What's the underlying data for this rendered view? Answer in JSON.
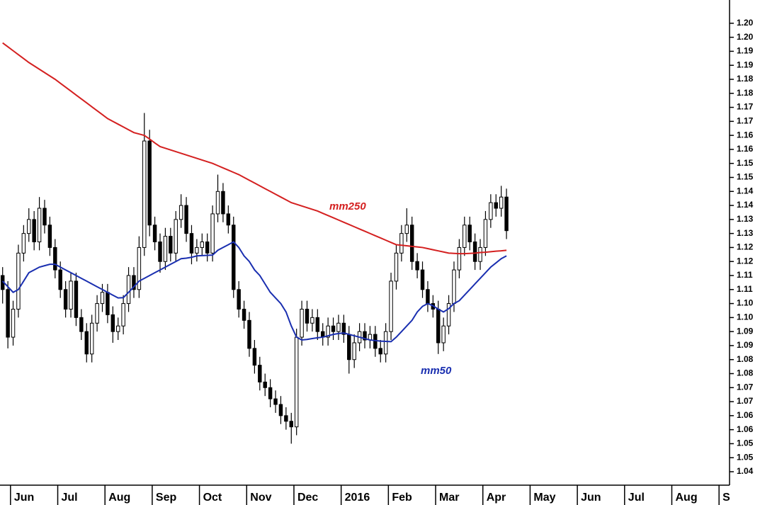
{
  "chart_data": {
    "type": "candlestick",
    "up_color": "#ffffff",
    "down_color": "#000000",
    "wick_color": "#000000",
    "categories": [
      null,
      null,
      "Jun",
      null,
      null,
      null,
      null,
      null,
      null,
      null,
      null,
      "Jul",
      null,
      null,
      null,
      null,
      null,
      null,
      null,
      null,
      "Aug",
      null,
      null,
      null,
      null,
      null,
      null,
      null,
      null,
      "Sep",
      null,
      null,
      null,
      null,
      null,
      null,
      null,
      null,
      "Oct",
      null,
      null,
      null,
      null,
      null,
      null,
      null,
      null,
      "Nov",
      null,
      null,
      null,
      null,
      null,
      null,
      null,
      null,
      "Dec",
      null,
      null,
      null,
      null,
      null,
      null,
      null,
      null,
      "2016",
      null,
      null,
      null,
      null,
      null,
      null,
      null,
      null,
      "Feb",
      null,
      null,
      null,
      null,
      null,
      null,
      null,
      null,
      "Mar",
      null,
      null,
      null,
      null,
      null,
      null,
      null,
      null,
      "Apr",
      null,
      null,
      null,
      null,
      null,
      null,
      null,
      null,
      "May",
      null,
      null,
      null,
      null,
      null,
      null,
      null,
      null,
      "Jun",
      null,
      null,
      null,
      null,
      null,
      null,
      null,
      null,
      "Jul",
      null,
      null,
      null,
      null,
      null,
      null,
      null,
      null,
      "Aug",
      null,
      null,
      null,
      null,
      null,
      null,
      null,
      null,
      "S",
      null
    ],
    "open": [
      1.11,
      1.105,
      1.088,
      1.098,
      1.118,
      1.125,
      1.13,
      1.122,
      1.134,
      1.128,
      1.12,
      1.112,
      1.105,
      1.098,
      1.108,
      1.095,
      1.09,
      1.082,
      1.093,
      1.1,
      1.104,
      1.096,
      1.09,
      1.092,
      1.1,
      1.11,
      1.105,
      1.12,
      1.158,
      1.128,
      1.122,
      1.115,
      1.124,
      1.118,
      1.13,
      1.135,
      1.125,
      1.118,
      1.12,
      1.122,
      1.118,
      1.132,
      1.14,
      1.132,
      1.128,
      1.105,
      1.098,
      1.094,
      1.084,
      1.078,
      1.072,
      1.07,
      1.066,
      1.064,
      1.06,
      1.058,
      1.056,
      1.088,
      1.098,
      1.093,
      1.095,
      1.09,
      1.088,
      1.092,
      1.09,
      1.093,
      1.089,
      1.08,
      1.086,
      1.09,
      1.087,
      1.089,
      1.084,
      1.082,
      1.09,
      1.108,
      1.118,
      1.125,
      1.128,
      1.115,
      1.112,
      1.105,
      1.1,
      1.098,
      1.086,
      1.092,
      1.1,
      1.112,
      1.12,
      1.128,
      1.122,
      1.115,
      1.12,
      1.13,
      1.136,
      1.134,
      1.138,
      null,
      null,
      null,
      null,
      null,
      null,
      null,
      null,
      null,
      null,
      null,
      null,
      null,
      null,
      null,
      null,
      null,
      null,
      null,
      null,
      null,
      null,
      null,
      null,
      null,
      null,
      null,
      null,
      null,
      null,
      null,
      null,
      null,
      null,
      null,
      null,
      null,
      null,
      null,
      null,
      null,
      null
    ],
    "high": [
      1.113,
      1.108,
      1.101,
      1.121,
      1.128,
      1.134,
      1.133,
      1.138,
      1.137,
      1.131,
      1.123,
      1.115,
      1.108,
      1.111,
      1.111,
      1.098,
      1.093,
      1.096,
      1.103,
      1.107,
      1.107,
      1.099,
      1.095,
      1.103,
      1.113,
      1.113,
      1.124,
      1.168,
      1.162,
      1.131,
      1.125,
      1.127,
      1.127,
      1.133,
      1.139,
      1.138,
      1.128,
      1.123,
      1.125,
      1.125,
      1.135,
      1.146,
      1.143,
      1.135,
      1.131,
      1.108,
      1.101,
      1.097,
      1.087,
      1.081,
      1.075,
      1.073,
      1.069,
      1.067,
      1.063,
      1.061,
      1.091,
      1.101,
      1.101,
      1.098,
      1.098,
      1.093,
      1.095,
      1.095,
      1.096,
      1.096,
      1.092,
      1.089,
      1.093,
      1.093,
      1.092,
      1.092,
      1.087,
      1.093,
      1.111,
      1.121,
      1.128,
      1.134,
      1.131,
      1.118,
      1.115,
      1.108,
      1.103,
      1.101,
      1.095,
      1.103,
      1.115,
      1.123,
      1.131,
      1.131,
      1.125,
      1.123,
      1.133,
      1.139,
      1.139,
      1.142,
      1.141,
      null,
      null,
      null,
      null,
      null,
      null,
      null,
      null,
      null,
      null,
      null,
      null,
      null,
      null,
      null,
      null,
      null,
      null,
      null,
      null,
      null,
      null,
      null,
      null,
      null,
      null,
      null,
      null,
      null,
      null,
      null,
      null,
      null,
      null,
      null,
      null,
      null,
      null,
      null,
      null,
      null,
      null
    ],
    "low": [
      1.1,
      1.084,
      1.085,
      1.095,
      1.115,
      1.122,
      1.119,
      1.119,
      1.125,
      1.117,
      1.109,
      1.102,
      1.095,
      1.095,
      1.092,
      1.087,
      1.079,
      1.079,
      1.09,
      1.097,
      1.093,
      1.086,
      1.087,
      1.089,
      1.097,
      1.102,
      1.102,
      1.117,
      1.124,
      1.119,
      1.111,
      1.112,
      1.115,
      1.115,
      1.127,
      1.122,
      1.114,
      1.115,
      1.117,
      1.115,
      1.115,
      1.129,
      1.129,
      1.125,
      1.102,
      1.095,
      1.091,
      1.081,
      1.075,
      1.069,
      1.067,
      1.063,
      1.061,
      1.057,
      1.055,
      1.05,
      1.053,
      1.085,
      1.09,
      1.09,
      1.087,
      1.085,
      1.085,
      1.087,
      1.087,
      1.086,
      1.075,
      1.077,
      1.083,
      1.084,
      1.084,
      1.081,
      1.079,
      1.079,
      1.087,
      1.105,
      1.115,
      1.122,
      1.112,
      1.109,
      1.102,
      1.097,
      1.095,
      1.082,
      1.083,
      1.089,
      1.097,
      1.109,
      1.117,
      1.119,
      1.112,
      1.112,
      1.117,
      1.127,
      1.131,
      1.131,
      1.123,
      null,
      null,
      null,
      null,
      null,
      null,
      null,
      null,
      null,
      null,
      null,
      null,
      null,
      null,
      null,
      null,
      null,
      null,
      null,
      null,
      null,
      null,
      null,
      null,
      null,
      null,
      null,
      null,
      null,
      null,
      null,
      null,
      null,
      null,
      null,
      null,
      null,
      null,
      null,
      null,
      null,
      null
    ],
    "close": [
      1.105,
      1.088,
      1.098,
      1.118,
      1.125,
      1.13,
      1.122,
      1.134,
      1.128,
      1.12,
      1.112,
      1.105,
      1.098,
      1.108,
      1.095,
      1.09,
      1.082,
      1.093,
      1.1,
      1.104,
      1.096,
      1.09,
      1.092,
      1.1,
      1.11,
      1.105,
      1.12,
      1.158,
      1.128,
      1.122,
      1.115,
      1.124,
      1.118,
      1.13,
      1.135,
      1.125,
      1.118,
      1.12,
      1.122,
      1.118,
      1.132,
      1.14,
      1.132,
      1.128,
      1.105,
      1.098,
      1.094,
      1.084,
      1.078,
      1.072,
      1.07,
      1.066,
      1.064,
      1.06,
      1.058,
      1.056,
      1.088,
      1.098,
      1.093,
      1.095,
      1.09,
      1.088,
      1.092,
      1.09,
      1.093,
      1.089,
      1.08,
      1.086,
      1.09,
      1.087,
      1.089,
      1.084,
      1.082,
      1.09,
      1.108,
      1.118,
      1.125,
      1.128,
      1.115,
      1.112,
      1.105,
      1.1,
      1.098,
      1.086,
      1.092,
      1.1,
      1.112,
      1.12,
      1.128,
      1.122,
      1.115,
      1.12,
      1.13,
      1.136,
      1.134,
      1.138,
      1.126,
      null,
      null,
      null,
      null,
      null,
      null,
      null,
      null,
      null,
      null,
      null,
      null,
      null,
      null,
      null,
      null,
      null,
      null,
      null,
      null,
      null,
      null,
      null,
      null,
      null,
      null,
      null,
      null,
      null,
      null,
      null,
      null,
      null,
      null,
      null,
      null,
      null,
      null,
      null,
      null,
      null,
      null
    ],
    "lines": [
      {
        "name": "mm250",
        "color": "#d42020",
        "values": [
          1.193,
          1.1916,
          1.1902,
          1.1888,
          1.1874,
          1.186,
          1.1848,
          1.1836,
          1.1824,
          1.1812,
          1.18,
          1.1786,
          1.1772,
          1.1758,
          1.1744,
          1.173,
          1.1716,
          1.1702,
          1.1688,
          1.1674,
          1.166,
          1.165,
          1.164,
          1.163,
          1.162,
          1.161,
          1.1605,
          1.16,
          1.1587,
          1.1573,
          1.156,
          1.1554,
          1.1548,
          1.1542,
          1.1536,
          1.153,
          1.1524,
          1.1518,
          1.1512,
          1.1506,
          1.15,
          1.1492,
          1.1484,
          1.1476,
          1.1468,
          1.146,
          1.145,
          1.144,
          1.143,
          1.142,
          1.141,
          1.14,
          1.139,
          1.138,
          1.137,
          1.136,
          1.1354,
          1.1348,
          1.1342,
          1.1336,
          1.133,
          1.1322,
          1.1314,
          1.1306,
          1.1298,
          1.129,
          1.1282,
          1.1274,
          1.1266,
          1.1258,
          1.125,
          1.1242,
          1.1234,
          1.1226,
          1.1218,
          1.121,
          1.1208,
          1.1206,
          1.1204,
          1.1202,
          1.12,
          1.1196,
          1.1192,
          1.1188,
          1.1184,
          1.118,
          1.1179,
          1.1178,
          1.1178,
          1.1179,
          1.118,
          1.1182,
          1.1183,
          1.1185,
          1.1187,
          1.1188,
          1.119,
          null,
          null,
          null,
          null,
          null,
          null,
          null,
          null,
          null,
          null,
          null,
          null,
          null,
          null,
          null,
          null,
          null,
          null,
          null,
          null,
          null,
          null,
          null,
          null,
          null,
          null,
          null,
          null,
          null,
          null,
          null,
          null,
          null,
          null,
          null,
          null,
          null,
          null,
          null,
          null,
          null,
          null
        ]
      },
      {
        "name": "mm50",
        "color": "#1a2fb0",
        "values": [
          1.108,
          1.106,
          1.104,
          1.105,
          1.108,
          1.111,
          1.112,
          1.113,
          1.1135,
          1.114,
          1.114,
          1.113,
          1.112,
          1.111,
          1.11,
          1.109,
          1.108,
          1.107,
          1.106,
          1.105,
          1.104,
          1.103,
          1.102,
          1.1021,
          1.104,
          1.106,
          1.108,
          1.109,
          1.11,
          1.111,
          1.112,
          1.113,
          1.114,
          1.115,
          1.116,
          1.1162,
          1.1165,
          1.117,
          1.1171,
          1.1172,
          1.1173,
          1.119,
          1.12,
          1.121,
          1.122,
          1.12,
          1.117,
          1.115,
          1.112,
          1.11,
          1.107,
          1.104,
          1.102,
          1.1,
          1.097,
          1.092,
          1.088,
          1.087,
          1.0872,
          1.0875,
          1.0878,
          1.088,
          1.0885,
          1.089,
          1.0893,
          1.0895,
          1.089,
          1.0885,
          1.088,
          1.0875,
          1.087,
          1.0868,
          1.0866,
          1.0865,
          1.0864,
          1.088,
          1.09,
          1.092,
          1.094,
          1.097,
          1.099,
          1.1,
          1.0992,
          1.098,
          1.097,
          1.0982,
          1.1,
          1.101,
          1.103,
          1.105,
          1.107,
          1.109,
          1.111,
          1.113,
          1.1145,
          1.116,
          1.117,
          null,
          null,
          null,
          null,
          null,
          null,
          null,
          null,
          null,
          null,
          null,
          null,
          null,
          null,
          null,
          null,
          null,
          null,
          null,
          null,
          null,
          null,
          null,
          null,
          null,
          null,
          null,
          null,
          null,
          null,
          null,
          null,
          null,
          null,
          null,
          null,
          null,
          null,
          null,
          null,
          null,
          null
        ]
      }
    ],
    "ylim": [
      1.0352,
      1.2083
    ],
    "yticks": [
      {
        "value": 1.2,
        "label": "1.20"
      },
      {
        "value": 1.195,
        "label": "1.20"
      },
      {
        "value": 1.19,
        "label": "1.19"
      },
      {
        "value": 1.185,
        "label": "1.19"
      },
      {
        "value": 1.18,
        "label": "1.18"
      },
      {
        "value": 1.175,
        "label": "1.18"
      },
      {
        "value": 1.17,
        "label": "1.17"
      },
      {
        "value": 1.165,
        "label": "1.17"
      },
      {
        "value": 1.16,
        "label": "1.16"
      },
      {
        "value": 1.155,
        "label": "1.16"
      },
      {
        "value": 1.15,
        "label": "1.15"
      },
      {
        "value": 1.145,
        "label": "1.15"
      },
      {
        "value": 1.14,
        "label": "1.14"
      },
      {
        "value": 1.135,
        "label": "1.14"
      },
      {
        "value": 1.13,
        "label": "1.13"
      },
      {
        "value": 1.125,
        "label": "1.13"
      },
      {
        "value": 1.12,
        "label": "1.12"
      },
      {
        "value": 1.115,
        "label": "1.12"
      },
      {
        "value": 1.11,
        "label": "1.11"
      },
      {
        "value": 1.105,
        "label": "1.11"
      },
      {
        "value": 1.1,
        "label": "1.10"
      },
      {
        "value": 1.095,
        "label": "1.10"
      },
      {
        "value": 1.09,
        "label": "1.09"
      },
      {
        "value": 1.085,
        "label": "1.09"
      },
      {
        "value": 1.08,
        "label": "1.08"
      },
      {
        "value": 1.075,
        "label": "1.08"
      },
      {
        "value": 1.07,
        "label": "1.07"
      },
      {
        "value": 1.065,
        "label": "1.07"
      },
      {
        "value": 1.06,
        "label": "1.06"
      },
      {
        "value": 1.055,
        "label": "1.06"
      },
      {
        "value": 1.05,
        "label": "1.05"
      },
      {
        "value": 1.045,
        "label": "1.05"
      },
      {
        "value": 1.04,
        "label": "1.04"
      }
    ],
    "grid": false
  }
}
